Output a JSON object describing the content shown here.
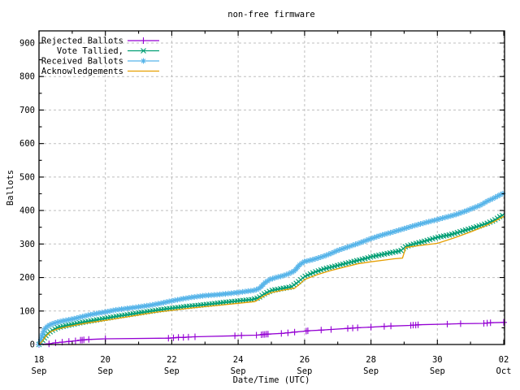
{
  "colors": {
    "background": "#ffffff",
    "border": "#000000",
    "grid": "#bfbfbf",
    "text": "#000000",
    "rejected": "#9400d3",
    "tallied": "#009e73",
    "received": "#56b4e9",
    "acknowledgements": "#e69f00"
  },
  "chart_data": {
    "type": "line",
    "title": "non-free firmware",
    "xlabel": "Date/Time (UTC)",
    "ylabel": "Ballots",
    "ylim": [
      0,
      900
    ],
    "yticks": [
      0,
      100,
      200,
      300,
      400,
      500,
      600,
      700,
      800,
      900
    ],
    "x_unit_days_from": "18 Sep 00:00 UTC",
    "xlim_days": [
      0,
      14
    ],
    "xticks": [
      {
        "t": 0,
        "day": "18",
        "month": "Sep"
      },
      {
        "t": 2,
        "day": "20",
        "month": "Sep"
      },
      {
        "t": 4,
        "day": "22",
        "month": "Sep"
      },
      {
        "t": 6,
        "day": "24",
        "month": "Sep"
      },
      {
        "t": 8,
        "day": "26",
        "month": "Sep"
      },
      {
        "t": 10,
        "day": "28",
        "month": "Sep"
      },
      {
        "t": 12,
        "day": "30",
        "month": "Sep"
      },
      {
        "t": 14,
        "day": "02",
        "month": "Oct"
      }
    ],
    "grid": true,
    "legend_position": "top-left-inside",
    "series": [
      {
        "name": "Rejected Ballots",
        "color": "#9400d3",
        "marker": "plus",
        "marker_mode": "points",
        "points": [
          [
            0,
            0
          ],
          [
            0.3,
            2
          ],
          [
            0.5,
            5
          ],
          [
            0.7,
            7
          ],
          [
            0.9,
            9
          ],
          [
            1.1,
            11
          ],
          [
            1.25,
            13
          ],
          [
            1.3,
            13
          ],
          [
            1.35,
            14
          ],
          [
            1.5,
            15
          ],
          [
            2,
            17
          ],
          [
            3.9,
            19
          ],
          [
            4.05,
            20
          ],
          [
            4.2,
            21
          ],
          [
            4.35,
            21
          ],
          [
            4.5,
            22
          ],
          [
            4.7,
            23
          ],
          [
            5.9,
            26
          ],
          [
            6.1,
            27
          ],
          [
            6.55,
            28
          ],
          [
            6.7,
            29
          ],
          [
            6.75,
            30
          ],
          [
            6.8,
            30
          ],
          [
            6.85,
            31
          ],
          [
            6.9,
            31
          ],
          [
            7.3,
            33
          ],
          [
            7.5,
            35
          ],
          [
            7.7,
            37
          ],
          [
            8.05,
            40
          ],
          [
            8.1,
            41
          ],
          [
            8.5,
            43
          ],
          [
            8.8,
            45
          ],
          [
            9.3,
            48
          ],
          [
            9.45,
            49
          ],
          [
            9.6,
            50
          ],
          [
            10,
            52
          ],
          [
            10.4,
            54
          ],
          [
            10.6,
            55
          ],
          [
            11.2,
            57
          ],
          [
            11.27,
            58
          ],
          [
            11.35,
            58
          ],
          [
            11.42,
            59
          ],
          [
            12.3,
            61
          ],
          [
            12.7,
            62
          ],
          [
            13.4,
            63
          ],
          [
            13.5,
            64
          ],
          [
            13.6,
            65
          ],
          [
            14,
            66
          ]
        ]
      },
      {
        "name": "Vote Tallied,",
        "color": "#009e73",
        "marker": "x",
        "marker_mode": "dense",
        "points": [
          [
            0,
            0
          ],
          [
            0.07,
            6
          ],
          [
            0.15,
            18
          ],
          [
            0.25,
            32
          ],
          [
            0.4,
            42
          ],
          [
            0.55,
            50
          ],
          [
            0.8,
            56
          ],
          [
            1,
            60
          ],
          [
            1.3,
            66
          ],
          [
            1.6,
            71
          ],
          [
            2,
            78
          ],
          [
            2.4,
            85
          ],
          [
            2.8,
            91
          ],
          [
            3.2,
            97
          ],
          [
            3.6,
            103
          ],
          [
            4,
            108
          ],
          [
            4.4,
            113
          ],
          [
            4.8,
            117
          ],
          [
            5.2,
            121
          ],
          [
            5.6,
            126
          ],
          [
            6,
            130
          ],
          [
            6.4,
            134
          ],
          [
            6.6,
            139
          ],
          [
            6.8,
            152
          ],
          [
            7,
            161
          ],
          [
            7.3,
            167
          ],
          [
            7.6,
            172
          ],
          [
            7.8,
            186
          ],
          [
            8,
            203
          ],
          [
            8.3,
            216
          ],
          [
            8.6,
            226
          ],
          [
            9,
            236
          ],
          [
            9.4,
            246
          ],
          [
            9.8,
            256
          ],
          [
            10.1,
            264
          ],
          [
            10.4,
            270
          ],
          [
            10.7,
            276
          ],
          [
            10.9,
            280
          ],
          [
            11.05,
            293
          ],
          [
            11.3,
            300
          ],
          [
            11.6,
            308
          ],
          [
            12,
            320
          ],
          [
            12.4,
            328
          ],
          [
            12.8,
            340
          ],
          [
            13.2,
            352
          ],
          [
            13.5,
            362
          ],
          [
            13.7,
            370
          ],
          [
            13.85,
            380
          ],
          [
            14,
            388
          ]
        ]
      },
      {
        "name": "Received Ballots",
        "color": "#56b4e9",
        "marker": "star",
        "marker_mode": "dense",
        "points": [
          [
            0,
            0
          ],
          [
            0.05,
            12
          ],
          [
            0.1,
            30
          ],
          [
            0.17,
            46
          ],
          [
            0.25,
            54
          ],
          [
            0.35,
            60
          ],
          [
            0.5,
            65
          ],
          [
            0.7,
            70
          ],
          [
            0.9,
            74
          ],
          [
            1.1,
            78
          ],
          [
            1.3,
            83
          ],
          [
            1.5,
            88
          ],
          [
            1.7,
            92
          ],
          [
            2,
            97
          ],
          [
            2.3,
            103
          ],
          [
            2.6,
            107
          ],
          [
            3,
            112
          ],
          [
            3.4,
            118
          ],
          [
            3.7,
            124
          ],
          [
            4,
            130
          ],
          [
            4.3,
            136
          ],
          [
            4.6,
            141
          ],
          [
            5,
            146
          ],
          [
            5.4,
            149
          ],
          [
            5.8,
            153
          ],
          [
            6.2,
            158
          ],
          [
            6.5,
            162
          ],
          [
            6.65,
            168
          ],
          [
            6.8,
            184
          ],
          [
            6.95,
            194
          ],
          [
            7.1,
            199
          ],
          [
            7.3,
            204
          ],
          [
            7.5,
            210
          ],
          [
            7.7,
            220
          ],
          [
            7.85,
            238
          ],
          [
            8,
            248
          ],
          [
            8.2,
            252
          ],
          [
            8.5,
            261
          ],
          [
            8.8,
            272
          ],
          [
            9,
            281
          ],
          [
            9.3,
            291
          ],
          [
            9.6,
            301
          ],
          [
            10,
            316
          ],
          [
            10.3,
            326
          ],
          [
            10.6,
            334
          ],
          [
            11,
            346
          ],
          [
            11.3,
            355
          ],
          [
            11.6,
            363
          ],
          [
            12,
            373
          ],
          [
            12.3,
            381
          ],
          [
            12.6,
            389
          ],
          [
            13,
            404
          ],
          [
            13.3,
            416
          ],
          [
            13.5,
            428
          ],
          [
            13.7,
            437
          ],
          [
            13.85,
            445
          ],
          [
            14,
            452
          ]
        ]
      },
      {
        "name": "Acknowledgements",
        "color": "#e69f00",
        "marker": "none",
        "marker_mode": "none",
        "points": [
          [
            0,
            0
          ],
          [
            0.1,
            10
          ],
          [
            0.2,
            24
          ],
          [
            0.35,
            38
          ],
          [
            0.55,
            46
          ],
          [
            0.8,
            52
          ],
          [
            1,
            56
          ],
          [
            1.5,
            65
          ],
          [
            2,
            72
          ],
          [
            2.5,
            80
          ],
          [
            3,
            88
          ],
          [
            3.5,
            96
          ],
          [
            4,
            102
          ],
          [
            4.5,
            108
          ],
          [
            5,
            113
          ],
          [
            5.5,
            118
          ],
          [
            6,
            123
          ],
          [
            6.5,
            128
          ],
          [
            6.8,
            146
          ],
          [
            7,
            155
          ],
          [
            7.4,
            163
          ],
          [
            7.7,
            168
          ],
          [
            7.85,
            180
          ],
          [
            8,
            194
          ],
          [
            8.4,
            209
          ],
          [
            8.8,
            221
          ],
          [
            9.2,
            231
          ],
          [
            9.6,
            241
          ],
          [
            10,
            247
          ],
          [
            10.4,
            252
          ],
          [
            10.7,
            256
          ],
          [
            10.95,
            258
          ],
          [
            11.05,
            290
          ],
          [
            11.5,
            296
          ],
          [
            12,
            302
          ],
          [
            12.5,
            318
          ],
          [
            13,
            336
          ],
          [
            13.4,
            352
          ],
          [
            13.7,
            366
          ],
          [
            13.9,
            377
          ],
          [
            14,
            382
          ]
        ]
      }
    ]
  }
}
